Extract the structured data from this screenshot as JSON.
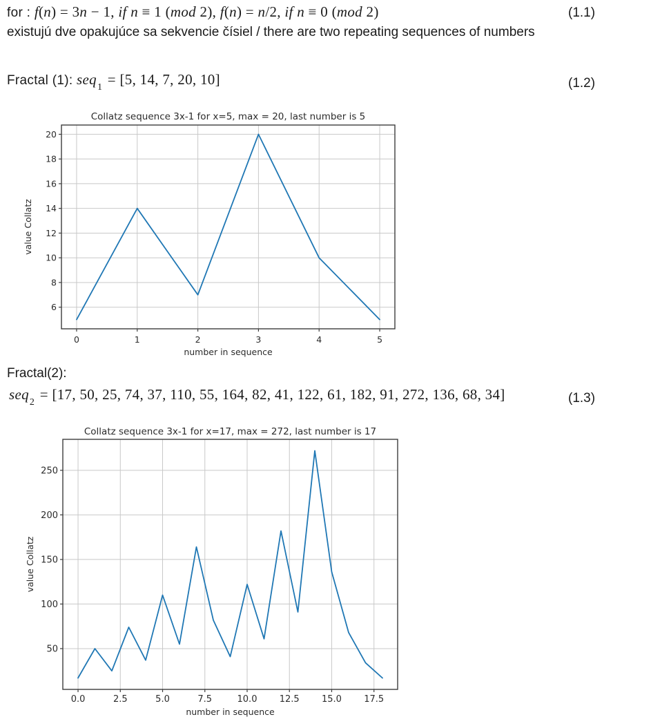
{
  "page": {
    "background": "#ffffff",
    "text_color": "#1a1a1a"
  },
  "header": {
    "formula_line": {
      "segments": [
        {
          "t": "for : ",
          "s": "p"
        },
        {
          "t": "f",
          "s": "i"
        },
        {
          "t": "(",
          "s": "u"
        },
        {
          "t": "n",
          "s": "i"
        },
        {
          "t": ") = 3",
          "s": "u"
        },
        {
          "t": "n",
          "s": "i"
        },
        {
          "t": " − 1, ",
          "s": "u"
        },
        {
          "t": "if n",
          "s": "i"
        },
        {
          "t": " ≡ 1 (",
          "s": "u"
        },
        {
          "t": "mod",
          "s": "i"
        },
        {
          "t": " 2), ",
          "s": "u"
        },
        {
          "t": "f",
          "s": "i"
        },
        {
          "t": "(",
          "s": "u"
        },
        {
          "t": "n",
          "s": "i"
        },
        {
          "t": ") = ",
          "s": "u"
        },
        {
          "t": "n",
          "s": "i"
        },
        {
          "t": "/2, ",
          "s": "u"
        },
        {
          "t": "if n",
          "s": "i"
        },
        {
          "t": " ≡ 0 (",
          "s": "u"
        },
        {
          "t": "mod",
          "s": "i"
        },
        {
          "t": " 2)",
          "s": "u"
        }
      ],
      "eq_number": "(1.1)"
    },
    "subtitle": "existujú dve opakujúce sa sekvencie čísiel / there are two repeating sequences of numbers"
  },
  "fractal1": {
    "segments": [
      {
        "t": "Fractal (1): ",
        "s": "p"
      },
      {
        "t": "seq",
        "s": "i"
      },
      {
        "t": "1",
        "s": "sub"
      },
      {
        "t": " = [5, 14, 7, 20, 10]",
        "s": "u"
      }
    ],
    "eq_number": "(1.2)"
  },
  "fractal2": {
    "label": "Fractal(2):",
    "segments": [
      {
        "t": "seq",
        "s": "i"
      },
      {
        "t": "2",
        "s": "sub"
      },
      {
        "t": " = [17, 50, 25, 74, 37, 110, 55, 164, 82, 41, 122, 61, 182, 91, 272, 136, 68, 34]",
        "s": "u"
      }
    ],
    "eq_number": "(1.3)"
  },
  "chart_data": [
    {
      "type": "line",
      "title": "Collatz sequence 3x-1 for x=5, max = 20, last number is 5",
      "xlabel": "number in sequence",
      "ylabel": "value Collatz",
      "x": [
        0,
        1,
        2,
        3,
        4,
        5
      ],
      "values": [
        5,
        14,
        7,
        20,
        10,
        5
      ],
      "xticks": [
        0,
        1,
        2,
        3,
        4,
        5
      ],
      "xtick_labels": [
        "0",
        "1",
        "2",
        "3",
        "4",
        "5"
      ],
      "yticks": [
        6,
        8,
        10,
        12,
        14,
        16,
        18,
        20
      ],
      "ytick_labels": [
        "6",
        "8",
        "10",
        "12",
        "14",
        "16",
        "18",
        "20"
      ],
      "xlim": [
        -0.25,
        5.25
      ],
      "ylim": [
        4.25,
        20.75
      ],
      "grid": true,
      "legend": "none",
      "line_color": "#1f77b4",
      "grid_color": "#c8c8c8",
      "spine_color": "#3c3c3c"
    },
    {
      "type": "line",
      "title": "Collatz sequence 3x-1 for x=17, max = 272, last number is 17",
      "xlabel": "number in sequence",
      "ylabel": "value Collatz",
      "x": [
        0,
        1,
        2,
        3,
        4,
        5,
        6,
        7,
        8,
        9,
        10,
        11,
        12,
        13,
        14,
        15,
        16,
        17,
        18
      ],
      "values": [
        17,
        50,
        25,
        74,
        37,
        110,
        55,
        164,
        82,
        41,
        122,
        61,
        182,
        91,
        272,
        136,
        68,
        34,
        17
      ],
      "xticks": [
        0,
        2.5,
        5,
        7.5,
        10,
        12.5,
        15,
        17.5
      ],
      "xtick_labels": [
        "0.0",
        "2.5",
        "5.0",
        "7.5",
        "10.0",
        "12.5",
        "15.0",
        "17.5"
      ],
      "yticks": [
        50,
        100,
        150,
        200,
        250
      ],
      "ytick_labels": [
        "50",
        "100",
        "150",
        "200",
        "250"
      ],
      "xlim": [
        -0.9,
        18.9
      ],
      "ylim": [
        4.25,
        284.75
      ],
      "grid": true,
      "legend": "none",
      "line_color": "#1f77b4",
      "grid_color": "#c8c8c8",
      "spine_color": "#3c3c3c"
    }
  ]
}
